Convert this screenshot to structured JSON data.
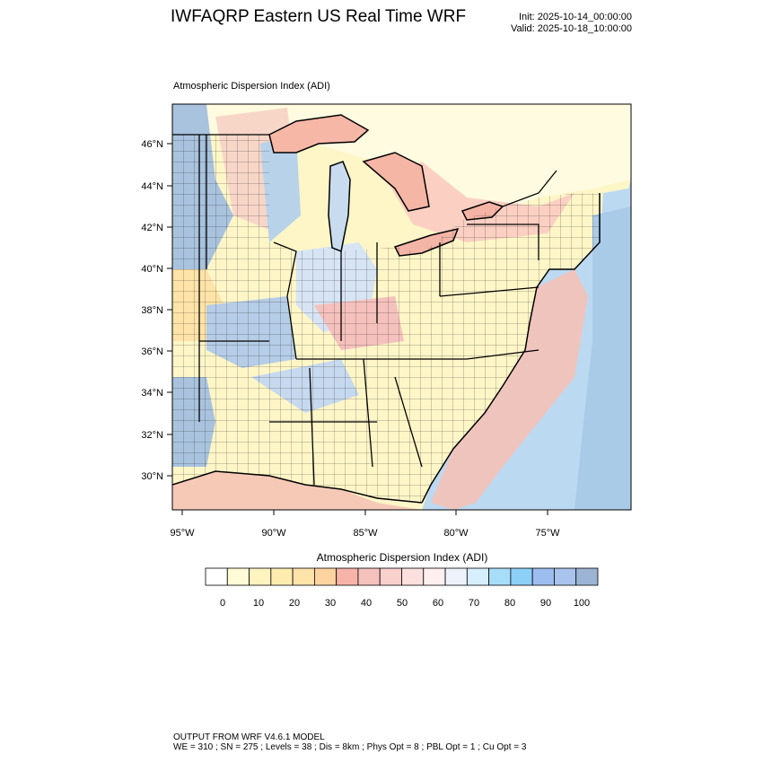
{
  "header": {
    "title": "IWFAQRP Eastern US Real Time WRF",
    "init": "Init: 2025-10-14_00:00:00",
    "valid": "Valid: 2025-10-18_10:00:00"
  },
  "plot": {
    "field_title": "Atmospheric Dispersion Index   (ADI)",
    "lat_labels": [
      "46°N",
      "44°N",
      "42°N",
      "40°N",
      "38°N",
      "36°N",
      "34°N",
      "32°N",
      "30°N"
    ],
    "lon_labels": [
      "95°W",
      "90°W",
      "85°W",
      "80°W",
      "75°W"
    ]
  },
  "colorbar": {
    "title": "Atmospheric Dispersion Index  (ADI)",
    "tick_labels": [
      "0",
      "10",
      "20",
      "30",
      "40",
      "50",
      "60",
      "70",
      "80",
      "90",
      "100"
    ],
    "colors": [
      "#ffffff",
      "#fffbd6",
      "#fff3c0",
      "#ffedb0",
      "#ffe3a8",
      "#ffd3a0",
      "#f7b3a8",
      "#f5c1bd",
      "#fad0cd",
      "#fbe0dd",
      "#fff0ef",
      "#eef2fb",
      "#d6eefd",
      "#a8ddfa",
      "#8ccff7",
      "#9dbdf1",
      "#a9c3ec",
      "#9cb4d4"
    ]
  },
  "footer": {
    "line1": "OUTPUT FROM WRF V4.6.1 MODEL",
    "line2": "WE = 310 ; SN = 275 ; Levels = 38 ; Dis = 8km ; Phys Opt = 8 ; PBL Opt = 1 ; Cu Opt = 3"
  }
}
